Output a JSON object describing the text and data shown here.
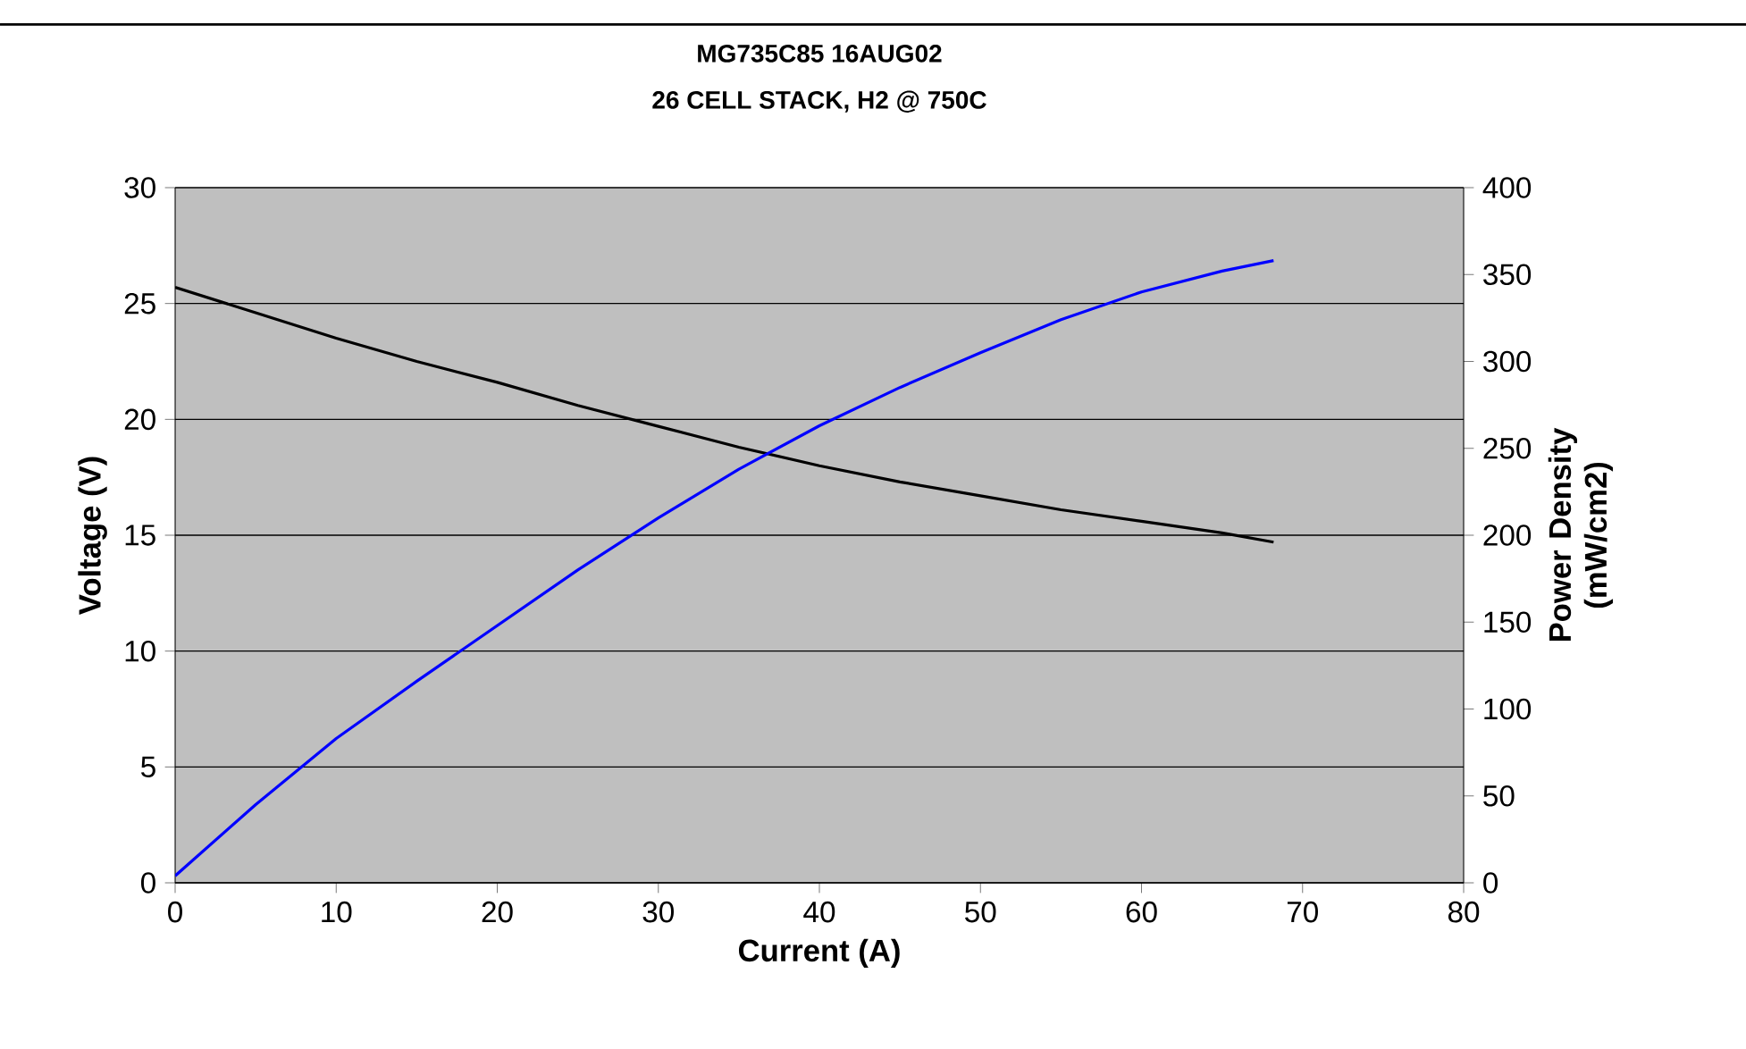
{
  "chart_data": {
    "type": "line",
    "title": "MG735C85 16AUG02",
    "subtitle": "26 CELL STACK,  H2 @ 750C",
    "xlabel": "Current (A)",
    "ylabel": "Voltage (V)",
    "y2label": "Power Density (mW/cm2)",
    "xlim": [
      0,
      80
    ],
    "xticks": [
      0,
      10,
      20,
      30,
      40,
      50,
      60,
      70,
      80
    ],
    "ylim": [
      0,
      30
    ],
    "yticks": [
      0,
      5,
      10,
      15,
      20,
      25,
      30
    ],
    "y2lim": [
      0,
      400
    ],
    "y2ticks": [
      0,
      50,
      100,
      150,
      200,
      250,
      300,
      350,
      400
    ],
    "grid": "y",
    "marker": "none",
    "line_style": "solid",
    "series": [
      {
        "color": "#000000",
        "x": [
          0,
          5,
          10,
          15,
          20,
          25,
          30,
          35,
          40,
          45,
          50,
          55,
          60,
          65,
          68.2
        ],
        "values": [
          25.7,
          24.6,
          23.5,
          22.5,
          21.6,
          20.6,
          19.7,
          18.8,
          18.0,
          17.3,
          16.7,
          16.1,
          15.6,
          15.1,
          14.7
        ]
      },
      {
        "color": "#0000ff",
        "axis": "y2",
        "x": [
          0,
          5,
          10,
          15,
          20,
          25,
          30,
          35,
          40,
          45,
          50,
          55,
          60,
          65,
          68.2
        ],
        "values": [
          4,
          45,
          83,
          116,
          148,
          180,
          210,
          238,
          263,
          285,
          305,
          324,
          340,
          352,
          358
        ]
      }
    ]
  }
}
